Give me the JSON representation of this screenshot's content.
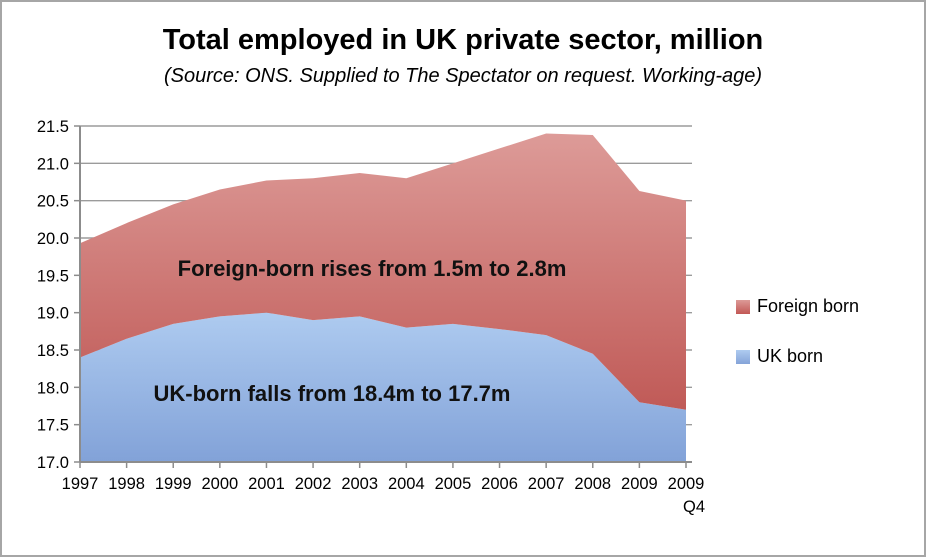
{
  "header": {
    "title": "Total employed in UK private sector, million",
    "subtitle": "(Source: ONS. Supplied to The Spectator on request. Working-age)"
  },
  "annotations": {
    "foreign": "Foreign-born rises from 1.5m to 2.8m",
    "uk": "UK-born falls from 18.4m to 17.7m"
  },
  "legend": {
    "position": "right",
    "items": [
      {
        "label": "Foreign born",
        "color_top": "#dc9a97",
        "color_bottom": "#c25855"
      },
      {
        "label": "UK born",
        "color_top": "#aecbf0",
        "color_bottom": "#84a3d8"
      }
    ]
  },
  "chart_data": {
    "type": "area",
    "stacked": true,
    "title": "Total employed in UK private sector, million",
    "subtitle": "(Source: ONS. Supplied to The Spectator on request. Working-age)",
    "categories": [
      "1997",
      "1998",
      "1999",
      "2000",
      "2001",
      "2002",
      "2003",
      "2004",
      "2005",
      "2006",
      "2007",
      "2008",
      "2009",
      "2009 Q4"
    ],
    "series": [
      {
        "name": "UK born",
        "values": [
          18.4,
          18.65,
          18.85,
          18.95,
          19.0,
          18.9,
          18.95,
          18.8,
          18.85,
          18.78,
          18.7,
          18.45,
          17.8,
          17.7
        ],
        "color_top": "#aecbf0",
        "color_bottom": "#82a2d8"
      },
      {
        "name": "Foreign born",
        "values": [
          1.53,
          1.55,
          1.6,
          1.7,
          1.77,
          1.9,
          1.92,
          2.0,
          2.15,
          2.42,
          2.7,
          2.93,
          2.83,
          2.8
        ],
        "color_top": "#dd9b98",
        "color_bottom": "#c05a57"
      }
    ],
    "stacked_totals": [
      19.93,
      20.2,
      20.45,
      20.65,
      20.77,
      20.8,
      20.87,
      20.8,
      21.0,
      21.2,
      21.4,
      21.38,
      20.63,
      20.5
    ],
    "ylim": [
      17.0,
      21.5
    ],
    "ytick_step": 0.5,
    "ytick_labels": [
      "17.0",
      "17.5",
      "18.0",
      "18.5",
      "19.0",
      "19.5",
      "20.0",
      "20.5",
      "21.0",
      "21.5"
    ],
    "grid": true,
    "grid_color": "#9b9b9b",
    "axis_color": "#8c8c8c",
    "text_color": "#000000",
    "legend_position": "right"
  }
}
